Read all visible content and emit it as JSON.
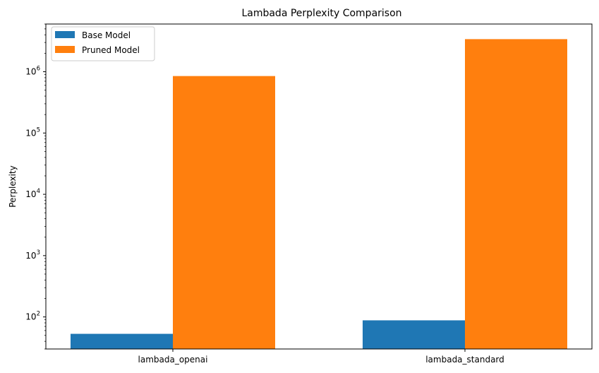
{
  "chart_data": {
    "type": "bar",
    "title": "Lambada Perplexity Comparison",
    "xlabel": "",
    "ylabel": "Perplexity",
    "yscale": "log",
    "ylim": [
      30,
      6000000
    ],
    "yticks": [
      {
        "base": "10",
        "exp": "2",
        "value": 100
      },
      {
        "base": "10",
        "exp": "3",
        "value": 1000
      },
      {
        "base": "10",
        "exp": "4",
        "value": 10000
      },
      {
        "base": "10",
        "exp": "5",
        "value": 100000
      },
      {
        "base": "10",
        "exp": "6",
        "value": 1000000
      }
    ],
    "categories": [
      "lambada_openai",
      "lambada_standard"
    ],
    "series": [
      {
        "name": "Base Model",
        "color": "#1f77b4",
        "values": [
          53,
          88
        ]
      },
      {
        "name": "Pruned Model",
        "color": "#ff7f0e",
        "values": [
          850000,
          3400000
        ]
      }
    ],
    "legend": "top-left",
    "grid": false
  }
}
